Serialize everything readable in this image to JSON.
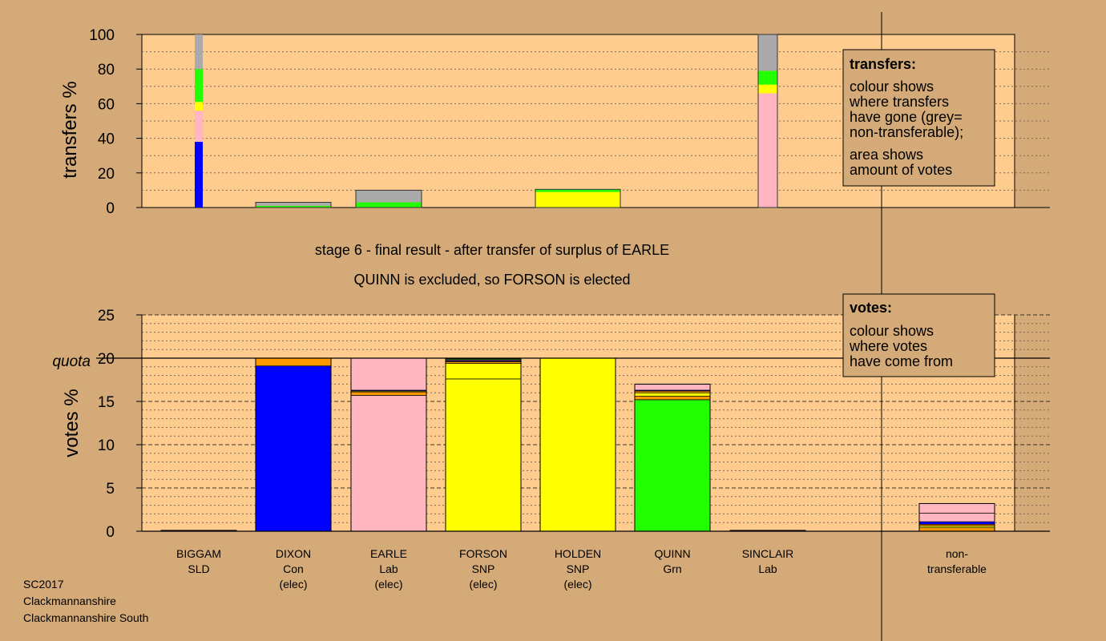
{
  "chart_data": [
    {
      "type": "bar",
      "stacked": true,
      "ylabel": "transfers %",
      "ylim": [
        0,
        100
      ],
      "yticks": [
        0,
        20,
        40,
        60,
        80,
        100
      ],
      "grid": "dotted",
      "categories": [
        "BIGGAM",
        "DIXON",
        "EARLE",
        "FORSON",
        "HOLDEN",
        "QUINN",
        "SINCLAIR"
      ],
      "bars": [
        {
          "category": "BIGGAM",
          "segments": [
            {
              "color": "#0000ff",
              "value": 38
            },
            {
              "color": "#ffb6c1",
              "value": 18
            },
            {
              "color": "#ffff00",
              "value": 5
            },
            {
              "color": "#22ff00",
              "value": 19
            },
            {
              "color": "#aaaaaa",
              "value": 20
            }
          ]
        },
        {
          "category": "DIXON",
          "segments": [
            {
              "color": "#22ff00",
              "value": 1
            },
            {
              "color": "#aaaaaa",
              "value": 2
            }
          ]
        },
        {
          "category": "EARLE",
          "segments": [
            {
              "color": "#22ff00",
              "value": 3
            },
            {
              "color": "#aaaaaa",
              "value": 7
            }
          ]
        },
        {
          "category": "HOLDEN",
          "segments": [
            {
              "color": "#ffff00",
              "value": 9
            },
            {
              "color": "#22ff00",
              "value": 1.5
            }
          ]
        },
        {
          "category": "SINCLAIR",
          "segments": [
            {
              "color": "#ffb6c1",
              "value": 66
            },
            {
              "color": "#ffff00",
              "value": 5
            },
            {
              "color": "#22ff00",
              "value": 8
            },
            {
              "color": "#aaaaaa",
              "value": 21
            }
          ]
        }
      ],
      "legend": {
        "title": "transfers:",
        "lines": [
          "colour shows",
          "where transfers",
          "have gone (grey=",
          "non-transferable);",
          "area shows",
          "amount of votes"
        ]
      }
    },
    {
      "type": "bar",
      "stacked": true,
      "ylabel": "votes %",
      "ylim": [
        0,
        25
      ],
      "yticks": [
        0,
        5,
        10,
        15,
        20,
        25
      ],
      "quota": {
        "label": "quota",
        "value": 20
      },
      "categories": [
        "BIGGAM",
        "DIXON",
        "EARLE",
        "FORSON",
        "HOLDEN",
        "QUINN",
        "SINCLAIR",
        "non-transferable"
      ],
      "bars": [
        {
          "category": "BIGGAM",
          "segments": [
            {
              "color": "#ff9900",
              "value": 0.1
            }
          ]
        },
        {
          "category": "DIXON",
          "segments": [
            {
              "color": "#0000ff",
              "value": 19.1
            },
            {
              "color": "#ff9900",
              "value": 0.9
            }
          ]
        },
        {
          "category": "EARLE",
          "segments": [
            {
              "color": "#ffb6c1",
              "value": 15.7
            },
            {
              "color": "#ff9900",
              "value": 0.4
            },
            {
              "color": "#ffff00",
              "value": 0.1
            },
            {
              "color": "#0000ff",
              "value": 0.1
            },
            {
              "color": "#ffb6c1",
              "value": 3.7
            }
          ]
        },
        {
          "category": "FORSON",
          "segments": [
            {
              "color": "#ffff00",
              "value": 17.6
            },
            {
              "color": "#ffff00",
              "value": 1.8
            },
            {
              "color": "#ff9900",
              "value": 0.2
            },
            {
              "color": "#0000ff",
              "value": 0.1
            },
            {
              "color": "#ffb6c1",
              "value": 0.1
            },
            {
              "color": "#22ff00",
              "value": 0.1
            }
          ]
        },
        {
          "category": "HOLDEN",
          "segments": [
            {
              "color": "#ffff00",
              "value": 20
            }
          ]
        },
        {
          "category": "QUINN",
          "segments": [
            {
              "color": "#22ff00",
              "value": 15.2
            },
            {
              "color": "#ff9900",
              "value": 0.4
            },
            {
              "color": "#ffff00",
              "value": 0.4
            },
            {
              "color": "#ff9900",
              "value": 0.2
            },
            {
              "color": "#0000ff",
              "value": 0.1
            },
            {
              "color": "#ffb6c1",
              "value": 0.7
            }
          ]
        },
        {
          "category": "SINCLAIR",
          "segments": [
            {
              "color": "#ff9900",
              "value": 0.1
            }
          ]
        },
        {
          "category": "non-transferable",
          "segments": [
            {
              "color": "#ff9900",
              "value": 0.4
            },
            {
              "color": "#ffff00",
              "value": 0.2
            },
            {
              "color": "#ff9900",
              "value": 0.2
            },
            {
              "color": "#0000ff",
              "value": 0.3
            },
            {
              "color": "#ffb6c1",
              "value": 1.0
            },
            {
              "color": "#ffb6c1",
              "value": 1.1
            }
          ]
        }
      ],
      "legend": {
        "title": "votes:",
        "lines": [
          "colour shows",
          "where votes",
          "have come from"
        ]
      }
    }
  ],
  "stage_title": "stage 6 - final result - after transfer of surplus of EARLE",
  "stage_subtitle": "QUINN is excluded, so FORSON is elected",
  "candidates": [
    {
      "name": "BIGGAM",
      "party": "SLD",
      "status": ""
    },
    {
      "name": "DIXON",
      "party": "Con",
      "status": "(elec)"
    },
    {
      "name": "EARLE",
      "party": "Lab",
      "status": "(elec)"
    },
    {
      "name": "FORSON",
      "party": "SNP",
      "status": "(elec)"
    },
    {
      "name": "HOLDEN",
      "party": "SNP",
      "status": "(elec)"
    },
    {
      "name": "QUINN",
      "party": "Grn",
      "status": ""
    },
    {
      "name": "SINCLAIR",
      "party": "Lab",
      "status": ""
    }
  ],
  "nontransferable_label": [
    "non-",
    "transferable"
  ],
  "footer": [
    "SC2017",
    "Clackmannanshire",
    "Clackmannanshire South"
  ],
  "colors": {
    "background": "#d4aa78",
    "plot_background": "#ffcc8f",
    "conservative": "#0000ff",
    "labour": "#ffb6c1",
    "snp": "#ffff00",
    "green": "#22ff00",
    "libdem": "#ff9900",
    "nontransferable": "#aaaaaa"
  }
}
